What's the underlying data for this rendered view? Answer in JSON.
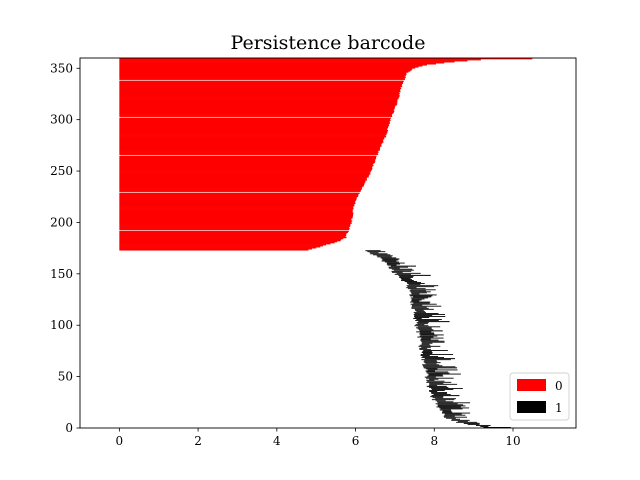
{
  "chart_data": {
    "type": "barcode",
    "title": "Persistence barcode",
    "xlim": [
      -1.0,
      11.6
    ],
    "ylim": [
      0,
      360
    ],
    "xticks": [
      0,
      2,
      4,
      6,
      8,
      10
    ],
    "yticks": [
      0,
      50,
      100,
      150,
      200,
      250,
      300,
      350
    ],
    "legend_position": "lower-right",
    "colors": {
      "dim0": "#ff0000",
      "dim1": "#000000"
    },
    "series": [
      {
        "name": "0",
        "color": "#ff0000",
        "bar_count": 186,
        "index_range": [
          173,
          359
        ],
        "birth": 0,
        "death_profile": [
          [
            173,
            4.8
          ],
          [
            175,
            5.0
          ],
          [
            178,
            5.25
          ],
          [
            181,
            5.55
          ],
          [
            185,
            5.75
          ],
          [
            190,
            5.8
          ],
          [
            200,
            5.9
          ],
          [
            215,
            5.95
          ],
          [
            225,
            6.05
          ],
          [
            235,
            6.2
          ],
          [
            250,
            6.4
          ],
          [
            270,
            6.6
          ],
          [
            285,
            6.78
          ],
          [
            300,
            6.88
          ],
          [
            315,
            7.05
          ],
          [
            330,
            7.15
          ],
          [
            345,
            7.3
          ],
          [
            350,
            7.5
          ],
          [
            353,
            7.8
          ],
          [
            356,
            8.5
          ],
          [
            358,
            9.2
          ],
          [
            359,
            10.5
          ]
        ],
        "gap_indices": [
          192,
          229,
          265,
          302,
          338
        ]
      },
      {
        "name": "1",
        "color": "#000000",
        "bar_count": 173,
        "index_range": [
          0,
          172
        ],
        "birth_profile": [
          [
            0,
            9.3
          ],
          [
            5,
            8.6
          ],
          [
            10,
            8.3
          ],
          [
            20,
            8.1
          ],
          [
            30,
            7.95
          ],
          [
            40,
            7.85
          ],
          [
            50,
            7.8
          ],
          [
            60,
            7.75
          ],
          [
            70,
            7.7
          ],
          [
            80,
            7.65
          ],
          [
            90,
            7.6
          ],
          [
            100,
            7.55
          ],
          [
            110,
            7.5
          ],
          [
            120,
            7.45
          ],
          [
            130,
            7.4
          ],
          [
            140,
            7.3
          ],
          [
            150,
            7.0
          ],
          [
            160,
            6.8
          ],
          [
            165,
            6.6
          ],
          [
            172,
            6.2
          ]
        ],
        "length_range": [
          0.2,
          0.85
        ]
      }
    ]
  }
}
